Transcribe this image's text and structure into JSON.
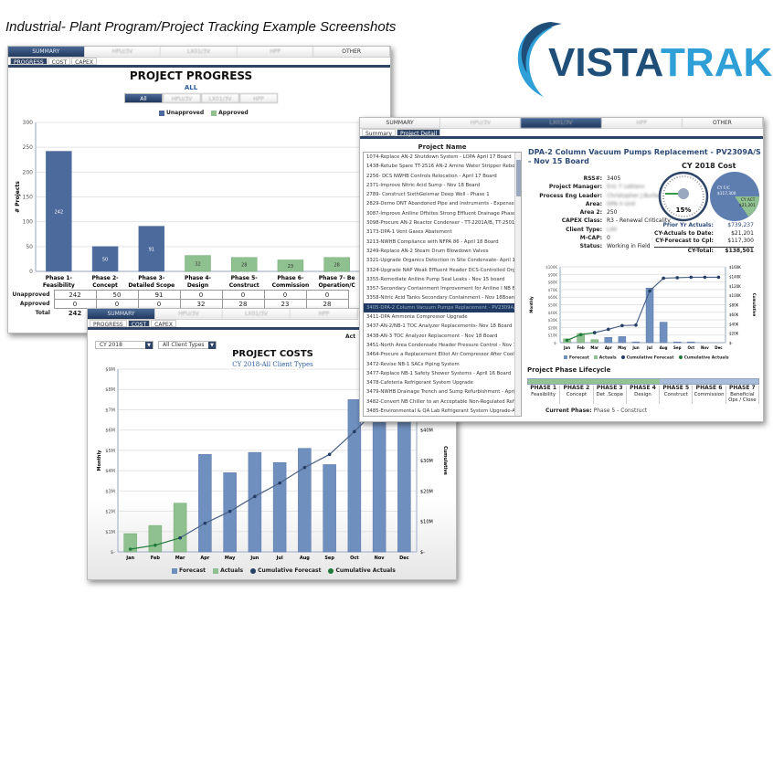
{
  "header": "Industrial- Plant Program/Project Tracking Example Screenshots",
  "logo": {
    "text_a": "VISTA",
    "text_b": "TRAK",
    "color_a": "#1f4e79",
    "color_b": "#2f9fd8"
  },
  "top_tabs": [
    "SUMMARY",
    "HPU/3V",
    "LX01/3V",
    "HPP",
    "OTHER"
  ],
  "progress_panel": {
    "subtabs": [
      "PROGRESS",
      "COST",
      "CAPEX"
    ],
    "title": "PROJECT PROGRESS",
    "subtitle": "ALL",
    "filters": [
      "All",
      "HPU/3V",
      "LX01/3V",
      "HPP"
    ],
    "row_labels": [
      "Unapproved",
      "Approved",
      "Total"
    ],
    "totals_visible": [
      "242"
    ]
  },
  "costs_panel": {
    "subtabs": [
      "PROGRESS",
      "COST",
      "CAPEX"
    ],
    "year": "CY 2018",
    "client_type": "All Client Types",
    "title": "PROJECT COSTS",
    "subtitle": "CY 2018-All Client Types",
    "act_label": "Act"
  },
  "detail_panel": {
    "subtabs": [
      "Summary",
      "Project Detail"
    ],
    "list_header": "Project Name",
    "projects": [
      "1074-Replace AN-2 Shutdown System - LOPA April 17 Board",
      "1438-Retube Spare TT-2516 AN-2 Amine Water Stripper Reboiler",
      "2256- DCS NWHB Controls Relocation - April 17 Board",
      "2371-Improve Nitric Acid Sump - Nov 18 Board",
      "2789- Construct SixthGeismar Deep Well - Phase 1",
      "2829-Demo DNT Abandoned Pipe and Instruments - Expense Only",
      "3087-Improve Aniline Offsites Strong Effluent Drainage Phase IV",
      "3098-Procure AN-2 Reactor Condenser - TT-2201A/B, TT-2501A -",
      "3173-DPA-1 Vent Gases Abatement",
      "3213-NWHB Compliance with NFPA 86 - April 18 Board",
      "3249-Replace AN-2 Steam Drum Blowdown Valves",
      "3321-Upgrade Organics Detection in Site Condensate- April 17 board",
      "3324-Upgrade NAP Weak Effluent Header DCS-Controlled Organics",
      "3355-Remediate Aniline Pump Seal Leaks - Nov 15 board",
      "3357-Secondary Containment Improvement for Aniline I NB Bulk",
      "3358-Nitric Acid Tanks Secondary Containment  - Nov 18Board(L",
      "3405-DPA-2 Column Vacuum Pumps Replacement - PV2309A/S - Nov",
      "3411-DPA Ammonia Compressor Upgrade",
      "3437-AN-2/NB-1 TOC Analyzer Replacements- Nov 18 Board",
      "3438-AN-3 TOC Analyzer Replacement - Nov 18 Board",
      "3451-North Area Condensate Header Pressure Control - Nov 19 Board",
      "3464-Procure a Replacement Elliot Air Compressor After Cooler, T",
      "3472-Revise NB-1 SACs Piping System",
      "3477-Replace NB-1 Safety Shower Systems - April 16 Board",
      "3478-Cafeteria Refrigerant System Upgrade",
      "3479-NWHB Drainage Trench and Sump Refurbishment - April 16",
      "3482-Convert NB Chiller to an Acceptable Non-Regulated Refrigerant",
      "3485-Environmental & QA Lab Refrigerant System Upgrade-April"
    ],
    "selected_index": 16,
    "title": "DPA-2 Column Vacuum Pumps Replacement - PV2309A/S - Nov 15 Board",
    "fields": [
      [
        "RSS#:",
        "3405"
      ],
      [
        "Project Manager:",
        "Eric T Leblanc"
      ],
      [
        "Process Eng Leader:",
        "Christopher J Burke"
      ],
      [
        "Area:",
        "DPA II Unit"
      ],
      [
        "Area 2:",
        "250"
      ],
      [
        "CAPEX Class:",
        "R3 - Renewal Criticality"
      ],
      [
        "Client Type:",
        "LXII"
      ],
      [
        "M-CAP:",
        "0"
      ],
      [
        "Status:",
        "Working in Field"
      ]
    ],
    "blurred_fields": [
      1,
      2,
      3,
      6
    ],
    "cost_title": "CY 2018 Cost",
    "gauge_value": "15%",
    "gauge_fraction": 0.15,
    "pie": {
      "fc_label": "CY F/C",
      "fc_value": "$117,300",
      "act_label": "CY ACT",
      "act_value": "$21,201"
    },
    "costs": [
      [
        "Prior Yr Actuals:",
        "$739,237"
      ],
      [
        "CY-Actuals to Date:",
        "$21,201"
      ],
      [
        "CY-Forecast to Cpl:",
        "$117,300"
      ],
      [
        "CY-Total:",
        "$138,501"
      ]
    ],
    "lifecycle_title": "Project Phase Lifecycle",
    "lifecycle_progress": 0.57,
    "phases": [
      [
        "PHASE 1",
        "Feasibility"
      ],
      [
        "PHASE 2",
        "Concept"
      ],
      [
        "PHASE 3",
        "Det .Scope"
      ],
      [
        "PHASE 4",
        "Design"
      ],
      [
        "PHASE 5",
        "Construct"
      ],
      [
        "PHASE 6",
        "Commission"
      ],
      [
        "PHASE 7",
        "Beneficial Ops / Close"
      ]
    ],
    "current_phase_label": "Current Phase:",
    "current_phase": "Phase 5 -   Construct"
  },
  "legend": {
    "unapproved": "Unapproved",
    "approved": "Approved",
    "forecast": "Forecast",
    "actuals": "Actuals",
    "cum_forecast": "Cumulative Forecast",
    "cum_actuals": "Cumulative Actuals"
  },
  "colors": {
    "blue": "#6f8fbf",
    "green": "#8fc08f",
    "navy": "#243e66",
    "dkgreen": "#1f7a3a"
  },
  "chart_data": [
    {
      "type": "bar",
      "title": "PROJECT PROGRESS",
      "ylabel": "# Projects",
      "ylim": [
        0,
        300
      ],
      "yticks": [
        0,
        50,
        100,
        150,
        200,
        250,
        300
      ],
      "categories": [
        "Phase 1-\nFeasibility",
        "Phase 2-\nConcept",
        "Phase 3-\nDetailed Scope",
        "Phase 4-\nDesign",
        "Phase 5-\nConstruct",
        "Phase 6-\nCommission",
        "Phase 7- Be\nOperation/C"
      ],
      "series": [
        {
          "name": "Unapproved",
          "values": [
            242,
            50,
            91,
            0,
            0,
            0,
            0
          ]
        },
        {
          "name": "Approved",
          "values": [
            0,
            0,
            0,
            32,
            28,
            23,
            28
          ]
        }
      ]
    },
    {
      "type": "bar",
      "title": "PROJECT COSTS",
      "ylabel": "Monthly",
      "y2label": "Cumulative",
      "ylim": [
        0,
        9
      ],
      "y2lim": [
        0,
        60
      ],
      "yticks": [
        "$-",
        "$1M",
        "$2M",
        "$3M",
        "$4M",
        "$5M",
        "$6M",
        "$7M",
        "$8M",
        "$9M"
      ],
      "y2ticks": [
        "$-",
        "$10M",
        "$20M",
        "$30M",
        "$40M"
      ],
      "categories": [
        "Jan",
        "Feb",
        "Mar",
        "Apr",
        "May",
        "Jun",
        "Jul",
        "Aug",
        "Sep",
        "Oct",
        "Nov",
        "Dec"
      ],
      "series": [
        {
          "name": "Forecast",
          "values": [
            0,
            0,
            0,
            4.8,
            3.9,
            4.9,
            4.4,
            5.1,
            4.3,
            7.5,
            8.2,
            6.6
          ]
        },
        {
          "name": "Actuals",
          "values": [
            0.9,
            1.3,
            2.4,
            0,
            0,
            0,
            0,
            0,
            0,
            0,
            0,
            0
          ]
        },
        {
          "name": "Cumulative Actuals",
          "axis": "y2",
          "values": [
            0.9,
            2.2,
            4.6,
            null,
            null,
            null,
            null,
            null,
            null,
            null,
            null,
            null
          ]
        },
        {
          "name": "Cumulative Forecast",
          "axis": "y2",
          "values": [
            null,
            null,
            4.6,
            9.4,
            13.3,
            18.2,
            22.6,
            27.7,
            32.0,
            39.5,
            47.7,
            54.3
          ]
        }
      ]
    },
    {
      "type": "bar",
      "ylabel": "Monthly",
      "y2label": "Cumulative",
      "ylim": [
        0,
        100
      ],
      "y2lim": [
        0,
        160
      ],
      "yticks": [
        "$-",
        "$10K",
        "$20K",
        "$30K",
        "$40K",
        "$50K",
        "$60K",
        "$70K",
        "$80K",
        "$90K",
        "$100K"
      ],
      "y2ticks": [
        "$-",
        "$20K",
        "$40K",
        "$60K",
        "$80K",
        "$100K",
        "$120K",
        "$140K",
        "$160K"
      ],
      "categories": [
        "Jan",
        "Feb",
        "Mar",
        "Apr",
        "May",
        "Jun",
        "Jul",
        "Aug",
        "Sep",
        "Oct",
        "Nov",
        "Dec"
      ],
      "series": [
        {
          "name": "Forecast",
          "values": [
            0,
            0,
            0,
            7,
            8,
            1,
            72,
            27,
            1,
            1,
            0,
            0
          ]
        },
        {
          "name": "Actuals",
          "values": [
            5,
            12,
            4,
            0,
            0,
            0,
            0,
            0,
            0,
            0,
            0,
            0
          ]
        },
        {
          "name": "Cumulative Actuals",
          "axis": "y2",
          "values": [
            5,
            17,
            21,
            null,
            null,
            null,
            null,
            null,
            null,
            null,
            null,
            null
          ]
        },
        {
          "name": "Cumulative Forecast",
          "axis": "y2",
          "values": [
            null,
            null,
            21,
            28,
            36,
            37,
            109,
            136,
            137,
            138,
            138,
            138
          ]
        }
      ]
    }
  ]
}
